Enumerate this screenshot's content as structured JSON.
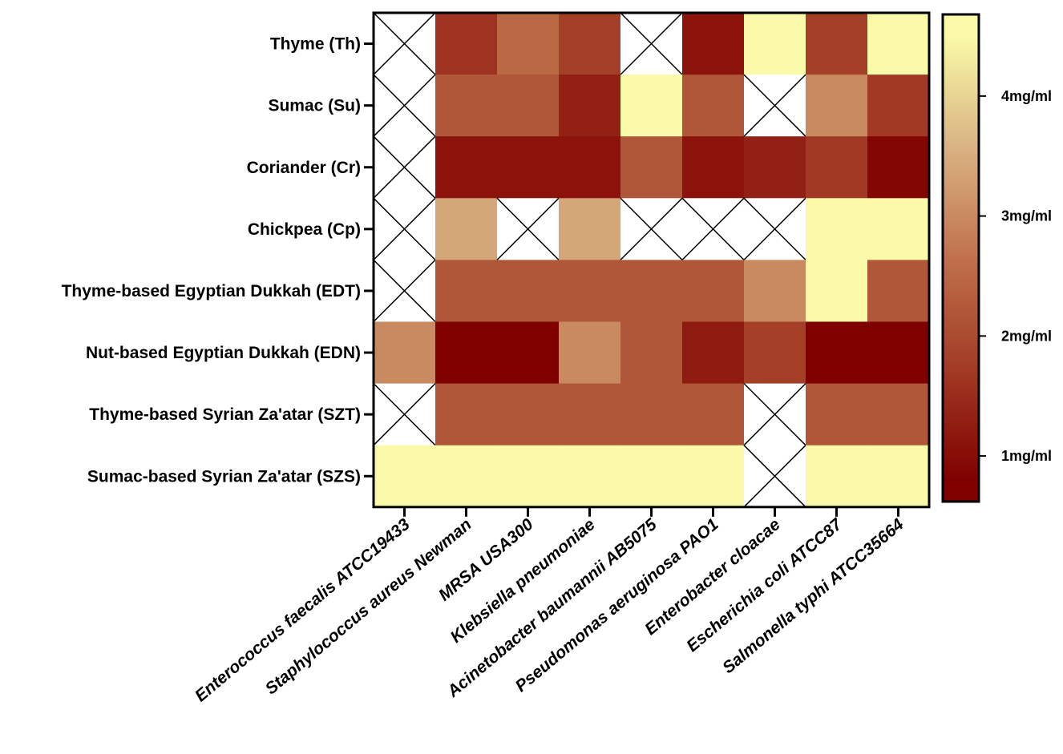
{
  "chart_data": {
    "type": "heatmap",
    "title": "",
    "xlabel": "",
    "ylabel": "",
    "rows": [
      "Thyme (Th)",
      "Sumac (Su)",
      "Coriander (Cr)",
      "Chickpea (Cp)",
      "Thyme-based Egyptian Dukkah (EDT)",
      "Nut-based Egyptian Dukkah (EDN)",
      "Thyme-based Syrian Za'atar (SZT)",
      "Sumac-based Syrian Za'atar (SZS)"
    ],
    "columns": [
      "Enterococcus faecalis ATCC19433",
      "Staphylococcus aureus Newman",
      "MRSA USA300",
      "Klebsiella pneumoniae",
      "Acinetobacter baumannii AB5075",
      "Pseudomonas aeruginosa PAO1",
      "Enterobacter cloacae",
      "Escherichia coli ATCC87",
      "Salmonella typhi ATCC35664"
    ],
    "values": [
      [
        null,
        1.6,
        2.5,
        1.8,
        null,
        1.1,
        4.5,
        1.8,
        4.5
      ],
      [
        null,
        2.2,
        2.2,
        1.3,
        4.5,
        2.2,
        null,
        3.0,
        1.7
      ],
      [
        null,
        1.1,
        1.1,
        1.1,
        2.2,
        1.1,
        1.3,
        1.7,
        0.9
      ],
      [
        null,
        3.4,
        null,
        3.4,
        null,
        null,
        null,
        4.5,
        4.5
      ],
      [
        null,
        2.2,
        2.2,
        2.2,
        2.2,
        2.2,
        3.0,
        4.5,
        2.2
      ],
      [
        3.0,
        0.8,
        0.8,
        3.0,
        2.2,
        1.2,
        1.8,
        0.8,
        0.8
      ],
      [
        null,
        2.2,
        2.2,
        2.2,
        2.2,
        2.2,
        null,
        2.2,
        2.2
      ],
      [
        4.5,
        4.5,
        4.5,
        4.5,
        4.5,
        4.5,
        null,
        4.5,
        4.5
      ]
    ],
    "missing_marker": "cross",
    "colorbar": {
      "min": 0.8,
      "max": 4.5,
      "ticks": [
        1,
        2,
        3,
        4
      ],
      "tick_labels": [
        "1mg/ml",
        "2mg/ml",
        "3mg/ml",
        "4mg/ml"
      ],
      "colors": [
        "#800000",
        "#a23b25",
        "#c0714b",
        "#d9b383",
        "#fafaa8"
      ]
    },
    "grid": false,
    "legend": "right"
  }
}
